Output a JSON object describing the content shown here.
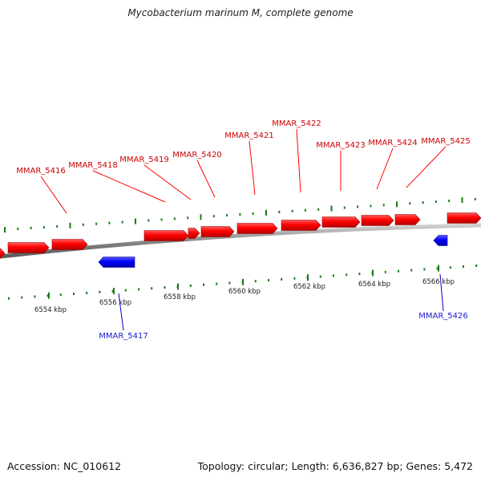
{
  "title": "Mycobacterium marinum M, complete genome",
  "footer": {
    "accession": "Accession: NC_010612",
    "summary": "Topology: circular; Length: 6,636,827 bp; Genes: 5,472"
  },
  "colors": {
    "forward_gene": "#ff0000",
    "reverse_gene": "#0000ff",
    "backbone": "#8c8c8c",
    "ticks": "#1a7a1a",
    "forward_label": "#cc0000",
    "reverse_label": "#1a1acc"
  },
  "scale": {
    "labels": [
      "6554 kbp",
      "6556 kbp",
      "6558 kbp",
      "6560 kbp",
      "6562 kbp",
      "6564 kbp",
      "6566 kbp"
    ]
  },
  "genes": [
    {
      "name": "MMAR_5416",
      "strand": "+"
    },
    {
      "name": "MMAR_5417",
      "strand": "-"
    },
    {
      "name": "MMAR_5418",
      "strand": "+"
    },
    {
      "name": "MMAR_5419",
      "strand": "+"
    },
    {
      "name": "MMAR_5420",
      "strand": "+"
    },
    {
      "name": "MMAR_5421",
      "strand": "+"
    },
    {
      "name": "MMAR_5422",
      "strand": "+"
    },
    {
      "name": "MMAR_5423",
      "strand": "+"
    },
    {
      "name": "MMAR_5424",
      "strand": "+"
    },
    {
      "name": "MMAR_5425",
      "strand": "+"
    },
    {
      "name": "MMAR_5426",
      "strand": "-"
    }
  ]
}
